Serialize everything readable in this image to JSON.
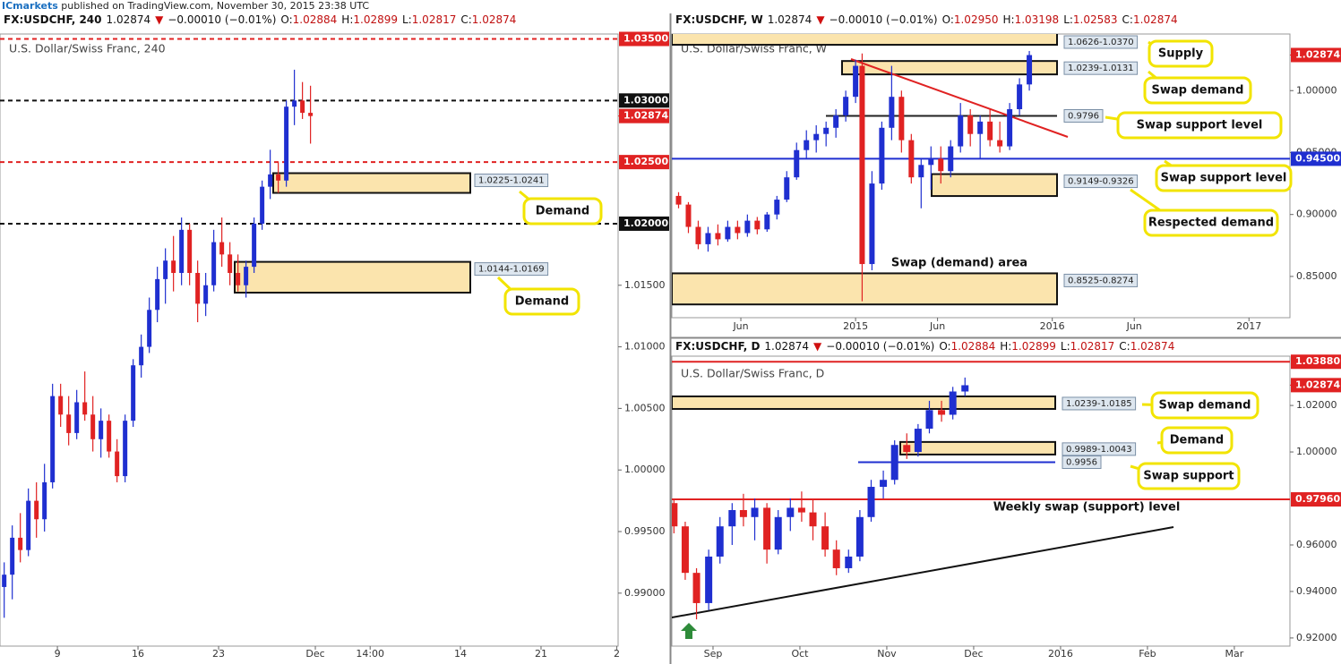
{
  "top_bar": {
    "brand": "ICmarkets",
    "text": "published on TradingView.com, November 30, 2015 23:38 UTC"
  },
  "chart_data": [
    {
      "type": "candlestick",
      "header": [
        {
          "text": "FX:USDCHF, 240",
          "color": "#111111"
        },
        {
          "text": "1.02874",
          "color": "#111111"
        },
        {
          "text": "▼",
          "color": "#d01010"
        },
        {
          "text": "−0.00010 (−0.01%)",
          "color": "#111111"
        },
        {
          "text": "O:",
          "color": "#111111"
        },
        {
          "text": "1.02884",
          "color": "#c01010"
        },
        {
          "text": "H:",
          "color": "#111111"
        },
        {
          "text": "1.02899",
          "color": "#c01010"
        },
        {
          "text": "L:",
          "color": "#111111"
        },
        {
          "text": "1.02817",
          "color": "#c01010"
        },
        {
          "text": "C:",
          "color": "#111111"
        },
        {
          "text": "1.02874",
          "color": "#c01010"
        }
      ],
      "title": "U.S. Dollar/Swiss Franc, 240",
      "up_color": "#1f2fd0",
      "down_color": "#e02222",
      "x": [
        -3.3,
        -2.8,
        -2.3,
        -1.8,
        -1.3,
        -0.8,
        -0.3,
        0.2,
        0.7,
        1.2,
        1.7,
        2.2,
        2.7,
        3.2,
        3.7,
        4.2,
        4.7,
        5.2,
        5.7,
        6.2,
        6.7,
        7.2,
        7.7,
        8.2,
        8.7,
        9.2,
        9.7,
        10.2,
        10.7,
        11.2,
        11.7,
        12.2,
        12.7,
        13.2,
        13.7,
        14.2,
        14.7,
        15.2,
        15.7
      ],
      "open": [
        0.9905,
        0.9915,
        0.9945,
        0.9935,
        0.9975,
        0.996,
        0.999,
        1.006,
        1.0045,
        1.003,
        1.0055,
        1.0045,
        1.0025,
        1.004,
        1.0015,
        0.9995,
        1.004,
        1.0085,
        1.01,
        1.013,
        1.0155,
        1.017,
        1.016,
        1.0195,
        1.016,
        1.0135,
        1.015,
        1.0185,
        1.0175,
        1.016,
        1.015,
        1.0165,
        1.02,
        1.023,
        1.024,
        1.0235,
        1.0295,
        1.03,
        1.029
      ],
      "high": [
        0.9925,
        0.9955,
        0.9965,
        0.9985,
        0.999,
        1.0005,
        1.007,
        1.007,
        1.006,
        1.0065,
        1.008,
        1.006,
        1.005,
        1.0045,
        1.0025,
        1.0045,
        1.009,
        1.011,
        1.014,
        1.0165,
        1.018,
        1.019,
        1.0205,
        1.02,
        1.017,
        1.016,
        1.0195,
        1.0205,
        1.0185,
        1.0175,
        1.017,
        1.0205,
        1.0235,
        1.026,
        1.025,
        1.03,
        1.0325,
        1.0315,
        1.0312
      ],
      "low": [
        0.988,
        0.9895,
        0.9925,
        0.993,
        0.9945,
        0.995,
        0.9985,
        1.0035,
        1.002,
        1.0025,
        1.004,
        1.0015,
        1.001,
        1.001,
        0.999,
        0.999,
        1.0035,
        1.0075,
        1.0095,
        1.012,
        1.0135,
        1.0145,
        1.015,
        1.015,
        1.012,
        1.0125,
        1.0145,
        1.0165,
        1.015,
        1.0145,
        1.014,
        1.016,
        1.0195,
        1.022,
        1.0225,
        1.023,
        1.028,
        1.0285,
        1.0265
      ],
      "close": [
        0.9915,
        0.9945,
        0.9935,
        0.9975,
        0.996,
        0.999,
        1.006,
        1.0045,
        1.003,
        1.0055,
        1.0045,
        1.0025,
        1.004,
        1.0015,
        0.9995,
        1.004,
        1.0085,
        1.01,
        1.013,
        1.0155,
        1.017,
        1.016,
        1.0195,
        1.016,
        1.0135,
        1.015,
        1.0185,
        1.0175,
        1.016,
        1.015,
        1.0165,
        1.02,
        1.023,
        1.024,
        1.0235,
        1.0295,
        1.03,
        1.029,
        1.02874
      ],
      "xlim": [
        -3.56,
        34.78
      ],
      "ylim": [
        0.9857,
        1.0354
      ],
      "xticks": [
        {
          "value": 0,
          "label": "9"
        },
        {
          "value": 5,
          "label": "16"
        },
        {
          "value": 10,
          "label": "23"
        },
        {
          "value": 16,
          "label": "Dec"
        },
        {
          "value": 19.4,
          "label": "14:00"
        },
        {
          "value": 25,
          "label": "14"
        },
        {
          "value": 30,
          "label": "21"
        },
        {
          "value": 34.7,
          "label": "2"
        }
      ],
      "yticks": [
        {
          "value": 1.015,
          "label": "1.01500"
        },
        {
          "value": 1.01,
          "label": "1.01000"
        },
        {
          "value": 1.005,
          "label": "1.00500"
        },
        {
          "value": 1.0,
          "label": "1.00000"
        },
        {
          "value": 0.995,
          "label": "0.99500"
        },
        {
          "value": 0.99,
          "label": "0.99000"
        }
      ],
      "levels": [
        {
          "value": 1.035,
          "label": "1.03500",
          "color": "#e02222",
          "dashed": true
        },
        {
          "value": 1.03,
          "label": "1.03000",
          "color": "#111111",
          "dashed": true
        },
        {
          "value": 1.025,
          "label": "1.02500",
          "color": "#e02222",
          "dashed": true
        },
        {
          "value": 1.02,
          "label": "1.02000",
          "color": "#111111",
          "dashed": true
        }
      ],
      "last_price": {
        "value": 1.02874,
        "label": "1.02874",
        "color": "#e02222"
      },
      "zones": [
        {
          "low": 1.0225,
          "high": 1.0241,
          "label": "1.0225-1.0241"
        },
        {
          "low": 1.0144,
          "high": 1.0169,
          "label": "1.0144-1.0169"
        }
      ],
      "callouts": [
        "Demand",
        "Demand"
      ]
    },
    {
      "type": "candlestick",
      "header": [
        {
          "text": "FX:USDCHF, W",
          "color": "#111111"
        },
        {
          "text": "1.02874",
          "color": "#111111"
        },
        {
          "text": "▼",
          "color": "#d01010"
        },
        {
          "text": "−0.00010 (−0.01%)",
          "color": "#111111"
        },
        {
          "text": "O:",
          "color": "#111111"
        },
        {
          "text": "1.02950",
          "color": "#c01010"
        },
        {
          "text": "H:",
          "color": "#111111"
        },
        {
          "text": "1.03198",
          "color": "#c01010"
        },
        {
          "text": "L:",
          "color": "#111111"
        },
        {
          "text": "1.02583",
          "color": "#c01010"
        },
        {
          "text": "C:",
          "color": "#111111"
        },
        {
          "text": "1.02874",
          "color": "#c01010"
        }
      ],
      "title": "U.S. Dollar/Swiss Franc, W",
      "up_color": "#1f2fd0",
      "down_color": "#e02222",
      "x": [
        1.2,
        1.8,
        2.4,
        3.0,
        3.6,
        4.2,
        4.8,
        5.4,
        6.0,
        6.6,
        7.2,
        7.8,
        8.4,
        9.0,
        9.6,
        10.2,
        10.8,
        11.4,
        12.0,
        12.4,
        13.0,
        13.6,
        14.2,
        14.8,
        15.4,
        16.0,
        16.6,
        17.2,
        17.8,
        18.4,
        19.0,
        19.6,
        20.2,
        20.8,
        21.4,
        22.0,
        22.6
      ],
      "open": [
        0.915,
        0.908,
        0.89,
        0.876,
        0.885,
        0.88,
        0.89,
        0.885,
        0.895,
        0.888,
        0.9,
        0.912,
        0.93,
        0.952,
        0.96,
        0.965,
        0.97,
        0.98,
        0.995,
        1.02,
        0.86,
        0.925,
        0.97,
        0.995,
        0.96,
        0.93,
        0.94,
        0.945,
        0.935,
        0.955,
        0.98,
        0.965,
        0.975,
        0.96,
        0.955,
        0.985,
        1.005
      ],
      "high": [
        0.918,
        0.91,
        0.895,
        0.89,
        0.892,
        0.895,
        0.895,
        0.9,
        0.898,
        0.902,
        0.915,
        0.935,
        0.958,
        0.968,
        0.972,
        0.975,
        0.985,
        1.0,
        1.025,
        1.03,
        0.935,
        0.975,
        1.02,
        1.0,
        0.965,
        0.945,
        0.955,
        0.955,
        0.96,
        0.99,
        0.985,
        0.98,
        0.985,
        0.975,
        0.99,
        1.01,
        1.032
      ],
      "low": [
        0.905,
        0.885,
        0.872,
        0.87,
        0.875,
        0.878,
        0.88,
        0.882,
        0.884,
        0.886,
        0.896,
        0.91,
        0.928,
        0.945,
        0.95,
        0.955,
        0.962,
        0.975,
        0.99,
        0.83,
        0.855,
        0.92,
        0.96,
        0.95,
        0.925,
        0.905,
        0.92,
        0.925,
        0.93,
        0.95,
        0.955,
        0.945,
        0.955,
        0.95,
        0.952,
        0.98,
        1.0
      ],
      "close": [
        0.908,
        0.89,
        0.876,
        0.885,
        0.88,
        0.89,
        0.885,
        0.895,
        0.888,
        0.9,
        0.912,
        0.93,
        0.952,
        0.96,
        0.965,
        0.97,
        0.98,
        0.995,
        1.02,
        0.86,
        0.925,
        0.97,
        0.995,
        0.96,
        0.93,
        0.94,
        0.945,
        0.935,
        0.955,
        0.98,
        0.965,
        0.975,
        0.96,
        0.955,
        0.985,
        1.005,
        1.0287
      ],
      "xlim": [
        0.79,
        38.5
      ],
      "ylim": [
        0.8167,
        1.0457
      ],
      "xticks": [
        {
          "value": 5,
          "label": "Jun"
        },
        {
          "value": 12,
          "label": "2015"
        },
        {
          "value": 17,
          "label": "Jun"
        },
        {
          "value": 24,
          "label": "2016"
        },
        {
          "value": 29,
          "label": "Jun"
        },
        {
          "value": 36,
          "label": "2017"
        }
      ],
      "yticks": [
        {
          "value": 1.0,
          "label": "1.00000"
        },
        {
          "value": 0.95,
          "label": "0.95000"
        },
        {
          "value": 0.9,
          "label": "0.90000"
        },
        {
          "value": 0.85,
          "label": "0.85000"
        }
      ],
      "levels": [
        {
          "value": 0.9796,
          "label": "0.9796",
          "color": "#222222",
          "dashed": false
        },
        {
          "value": 0.945,
          "label": "0.94500",
          "color": "#1f2fd0",
          "dashed": false
        }
      ],
      "last_price": {
        "value": 1.02874,
        "label": "1.02874",
        "color": "#e02222"
      },
      "zones": [
        {
          "low": 1.037,
          "high": 1.0626,
          "label": "1.0626-1.0370"
        },
        {
          "low": 1.0131,
          "high": 1.0239,
          "label": "1.0239-1.0131"
        },
        {
          "low": 0.9149,
          "high": 0.9326,
          "label": "0.9149-0.9326"
        },
        {
          "low": 0.8274,
          "high": 0.8525,
          "label": "0.8525-0.8274"
        }
      ],
      "callouts": [
        "Supply",
        "Swap demand",
        "Swap support level",
        "Swap support level",
        "Respected demand"
      ],
      "note": "Swap (demand) area"
    },
    {
      "type": "candlestick",
      "header": [
        {
          "text": "FX:USDCHF, D",
          "color": "#111111"
        },
        {
          "text": "1.02874",
          "color": "#111111"
        },
        {
          "text": "▼",
          "color": "#d01010"
        },
        {
          "text": "−0.00010 (−0.01%)",
          "color": "#111111"
        },
        {
          "text": "O:",
          "color": "#111111"
        },
        {
          "text": "1.02884",
          "color": "#c01010"
        },
        {
          "text": "H:",
          "color": "#111111"
        },
        {
          "text": "1.02899",
          "color": "#c01010"
        },
        {
          "text": "L:",
          "color": "#111111"
        },
        {
          "text": "1.02817",
          "color": "#c01010"
        },
        {
          "text": "C:",
          "color": "#111111"
        },
        {
          "text": "1.02874",
          "color": "#c01010"
        }
      ],
      "title": "U.S. Dollar/Swiss Franc, D",
      "up_color": "#1f2fd0",
      "down_color": "#e02222",
      "x": [
        7.55,
        7.68,
        7.81,
        7.95,
        8.08,
        8.22,
        8.35,
        8.48,
        8.62,
        8.75,
        8.89,
        9.02,
        9.15,
        9.29,
        9.42,
        9.56,
        9.69,
        9.82,
        9.96,
        10.09,
        10.23,
        10.36,
        10.49,
        10.63,
        10.76,
        10.9
      ],
      "open": [
        0.978,
        0.968,
        0.948,
        0.935,
        0.955,
        0.968,
        0.975,
        0.972,
        0.976,
        0.958,
        0.972,
        0.976,
        0.974,
        0.968,
        0.958,
        0.95,
        0.955,
        0.972,
        0.985,
        0.988,
        1.003,
        1.0,
        1.01,
        1.018,
        1.016,
        1.026
      ],
      "high": [
        0.98,
        0.97,
        0.95,
        0.958,
        0.972,
        0.978,
        0.982,
        0.98,
        0.978,
        0.975,
        0.98,
        0.983,
        0.98,
        0.974,
        0.962,
        0.958,
        0.975,
        0.988,
        0.992,
        1.005,
        1.008,
        1.012,
        1.022,
        1.022,
        1.028,
        1.032
      ],
      "low": [
        0.965,
        0.945,
        0.928,
        0.932,
        0.952,
        0.96,
        0.968,
        0.962,
        0.952,
        0.956,
        0.966,
        0.97,
        0.962,
        0.955,
        0.947,
        0.948,
        0.953,
        0.97,
        0.98,
        0.986,
        0.997,
        0.998,
        1.008,
        1.013,
        1.014,
        1.024
      ],
      "close": [
        0.968,
        0.948,
        0.935,
        0.955,
        0.968,
        0.975,
        0.972,
        0.976,
        0.958,
        0.972,
        0.976,
        0.974,
        0.968,
        0.958,
        0.95,
        0.955,
        0.972,
        0.985,
        0.988,
        1.003,
        1.0,
        1.01,
        1.018,
        1.016,
        1.026,
        1.0287
      ],
      "xlim": [
        7.526,
        14.64
      ],
      "ylim": [
        0.9165,
        1.0412
      ],
      "xticks": [
        {
          "value": 8,
          "label": "Sep"
        },
        {
          "value": 9,
          "label": "Oct"
        },
        {
          "value": 10,
          "label": "Nov"
        },
        {
          "value": 11,
          "label": "Dec"
        },
        {
          "value": 12,
          "label": "2016"
        },
        {
          "value": 13,
          "label": "Feb"
        },
        {
          "value": 14,
          "label": "Mar"
        }
      ],
      "yticks": [
        {
          "value": 1.02,
          "label": "1.02000"
        },
        {
          "value": 1.0,
          "label": "1.00000"
        },
        {
          "value": 0.96,
          "label": "0.96000"
        },
        {
          "value": 0.94,
          "label": "0.94000"
        },
        {
          "value": 0.92,
          "label": "0.92000"
        }
      ],
      "levels": [
        {
          "value": 1.0388,
          "label": "1.03880",
          "color": "#e02222",
          "dashed": false
        },
        {
          "value": 0.9796,
          "label": "0.97960",
          "color": "#e02222",
          "dashed": false
        },
        {
          "value": 0.9956,
          "label": "0.9956",
          "color": "#1f2fd0",
          "dashed": false
        }
      ],
      "last_price": {
        "value": 1.02874,
        "label": "1.02874",
        "color": "#e02222"
      },
      "zones": [
        {
          "low": 1.0185,
          "high": 1.0239,
          "label": "1.0239-1.0185"
        },
        {
          "low": 0.9989,
          "high": 1.0043,
          "label": "0.9989-1.0043"
        }
      ],
      "callouts": [
        "Swap demand",
        "Demand",
        "Swap support"
      ],
      "note": "Weekly swap (support) level"
    }
  ]
}
